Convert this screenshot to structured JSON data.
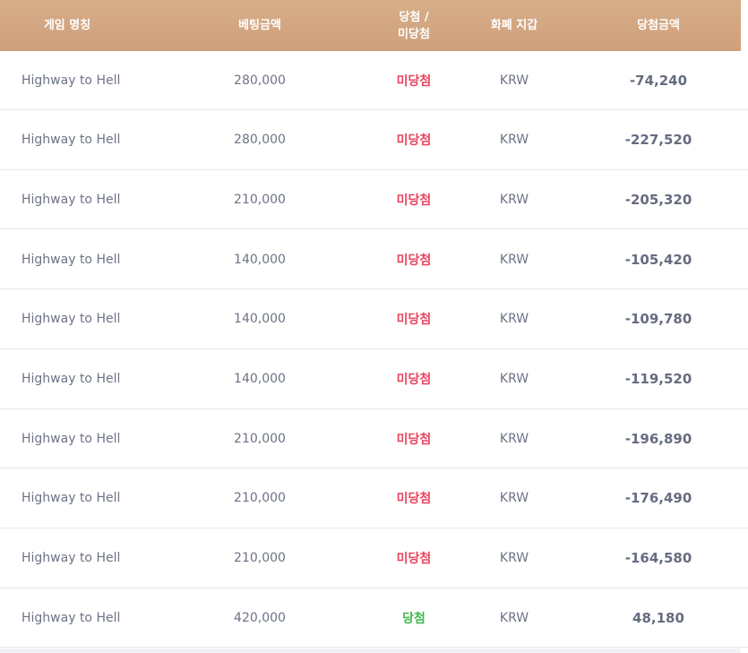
{
  "header": {
    "game_name": "게임 명칭",
    "bet_amount": "베팅금액",
    "result_line1": "당첨 /",
    "result_line2": "미당첨",
    "currency": "화폐 지갑",
    "payout": "당첨금액"
  },
  "colors": {
    "header_bg": "#d4a883",
    "lose": "#e8455f",
    "win": "#3fb84a",
    "text": "#6d7385"
  },
  "rows": [
    {
      "game": "Highway to Hell",
      "amount": "280,000",
      "result": "미당첨",
      "status": "lose",
      "currency": "KRW",
      "payout": "-74,240"
    },
    {
      "game": "Highway to Hell",
      "amount": "280,000",
      "result": "미당첨",
      "status": "lose",
      "currency": "KRW",
      "payout": "-227,520"
    },
    {
      "game": "Highway to Hell",
      "amount": "210,000",
      "result": "미당첨",
      "status": "lose",
      "currency": "KRW",
      "payout": "-205,320"
    },
    {
      "game": "Highway to Hell",
      "amount": "140,000",
      "result": "미당첨",
      "status": "lose",
      "currency": "KRW",
      "payout": "-105,420"
    },
    {
      "game": "Highway to Hell",
      "amount": "140,000",
      "result": "미당첨",
      "status": "lose",
      "currency": "KRW",
      "payout": "-109,780"
    },
    {
      "game": "Highway to Hell",
      "amount": "140,000",
      "result": "미당첨",
      "status": "lose",
      "currency": "KRW",
      "payout": "-119,520"
    },
    {
      "game": "Highway to Hell",
      "amount": "210,000",
      "result": "미당첨",
      "status": "lose",
      "currency": "KRW",
      "payout": "-196,890"
    },
    {
      "game": "Highway to Hell",
      "amount": "210,000",
      "result": "미당첨",
      "status": "lose",
      "currency": "KRW",
      "payout": "-176,490"
    },
    {
      "game": "Highway to Hell",
      "amount": "210,000",
      "result": "미당첨",
      "status": "lose",
      "currency": "KRW",
      "payout": "-164,580"
    },
    {
      "game": "Highway to Hell",
      "amount": "420,000",
      "result": "당첨",
      "status": "win",
      "currency": "KRW",
      "payout": "48,180"
    }
  ]
}
